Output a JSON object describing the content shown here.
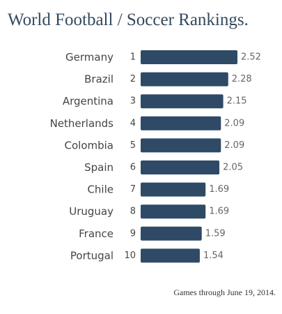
{
  "chart_data": {
    "type": "bar",
    "orientation": "horizontal",
    "title": "World Football / Soccer Rankings.",
    "categories": [
      "Germany",
      "Brazil",
      "Argentina",
      "Netherlands",
      "Colombia",
      "Spain",
      "Chile",
      "Uruguay",
      "France",
      "Portugal"
    ],
    "ranks": [
      "1",
      "2",
      "3",
      "4",
      "5",
      "6",
      "7",
      "8",
      "9",
      "10"
    ],
    "values": [
      2.52,
      2.28,
      2.15,
      2.09,
      2.09,
      2.05,
      1.69,
      1.69,
      1.59,
      1.54
    ],
    "value_labels": [
      "2.52",
      "2.28",
      "2.15",
      "2.09",
      "2.09",
      "2.05",
      "1.69",
      "1.69",
      "1.59",
      "1.54"
    ],
    "xlim": [
      0,
      2.52
    ],
    "grid": false,
    "colors": {
      "bar": "#2f4a66",
      "title": "#34495e",
      "label": "#444444",
      "value": "#666666"
    }
  },
  "footnote": "Games through June 19, 2014."
}
